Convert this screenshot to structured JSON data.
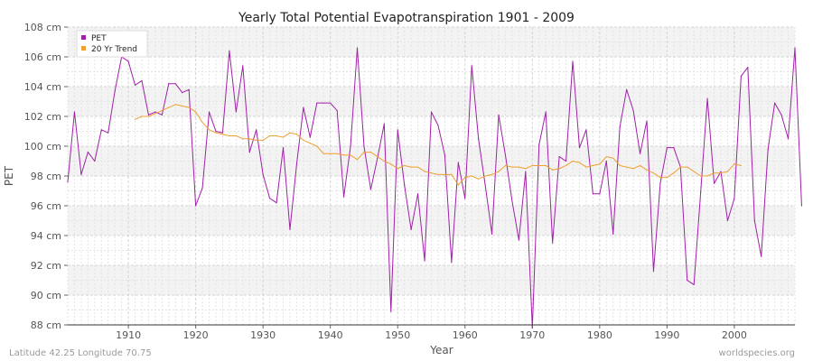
{
  "chart_data": {
    "type": "line",
    "title": "Yearly Total Potential Evapotranspiration 1901 - 2009",
    "xlabel": "Year",
    "ylabel": "PET",
    "xlim": [
      1901,
      2009
    ],
    "ylim": [
      88,
      108
    ],
    "y_unit": "cm",
    "x_ticks": [
      1910,
      1920,
      1930,
      1940,
      1950,
      1960,
      1970,
      1980,
      1990,
      2000
    ],
    "y_ticks": [
      88,
      90,
      92,
      94,
      96,
      98,
      100,
      102,
      104,
      106,
      108
    ],
    "y_tick_labels": [
      "88 cm",
      "90 cm",
      "92 cm",
      "94 cm",
      "96 cm",
      "98 cm",
      "100 cm",
      "102 cm",
      "104 cm",
      "106 cm",
      "108 cm"
    ],
    "grid": true,
    "legend_position": "top-left",
    "series": [
      {
        "name": "PET",
        "color": "#a020a8",
        "x_start": 1901,
        "values": [
          97.6,
          102.3,
          98.1,
          99.6,
          99.0,
          101.1,
          100.9,
          103.7,
          106.0,
          105.7,
          104.1,
          104.4,
          102.1,
          102.3,
          102.1,
          104.2,
          104.2,
          103.6,
          103.8,
          96.0,
          97.2,
          102.3,
          101.0,
          100.9,
          106.4,
          102.3,
          105.4,
          99.6,
          101.1,
          98.1,
          96.5,
          96.2,
          99.9,
          94.4,
          98.8,
          102.6,
          100.6,
          102.9,
          102.9,
          102.9,
          102.4,
          96.6,
          100.0,
          106.6,
          100.0,
          97.1,
          99.2,
          101.5,
          88.9,
          101.1,
          97.4,
          94.4,
          96.8,
          92.3,
          102.3,
          101.4,
          99.4,
          92.2,
          98.9,
          96.5,
          105.4,
          100.5,
          97.4,
          94.1,
          102.1,
          99.4,
          96.3,
          93.7,
          98.3,
          87.8,
          100.1,
          102.3,
          93.5,
          99.3,
          99.0,
          105.7,
          99.9,
          101.1,
          96.8,
          96.8,
          99.0,
          94.1,
          101.3,
          103.8,
          102.4,
          99.5,
          101.7,
          91.6,
          97.5,
          99.9,
          99.9,
          98.6,
          91.0,
          90.7,
          96.9,
          103.2,
          97.5,
          98.3,
          95.0,
          96.5,
          104.7,
          105.3,
          95.0,
          92.6,
          99.8,
          102.9,
          102.1,
          100.5,
          106.6,
          96.0
        ]
      },
      {
        "name": "20 Yr Trend",
        "color": "#f0a030",
        "x_start": 1911,
        "values": [
          101.8,
          102.0,
          102.0,
          102.2,
          102.4,
          102.6,
          102.8,
          102.7,
          102.6,
          102.3,
          101.6,
          101.1,
          100.9,
          100.8,
          100.7,
          100.7,
          100.5,
          100.5,
          100.4,
          100.4,
          100.7,
          100.7,
          100.6,
          100.9,
          100.8,
          100.4,
          100.2,
          100.0,
          99.5,
          99.5,
          99.5,
          99.4,
          99.4,
          99.1,
          99.6,
          99.6,
          99.3,
          99.0,
          98.8,
          98.5,
          98.7,
          98.6,
          98.6,
          98.3,
          98.2,
          98.1,
          98.1,
          98.1,
          97.4,
          97.9,
          98.0,
          97.8,
          98.0,
          98.1,
          98.3,
          98.7,
          98.6,
          98.6,
          98.5,
          98.7,
          98.7,
          98.7,
          98.4,
          98.5,
          98.7,
          99.0,
          98.9,
          98.6,
          98.7,
          98.8,
          99.3,
          99.2,
          98.7,
          98.6,
          98.5,
          98.7,
          98.4,
          98.2,
          97.9,
          97.9,
          98.2,
          98.6,
          98.6,
          98.3,
          98.0,
          98.0,
          98.2,
          98.2,
          98.3,
          98.8,
          98.7
        ]
      }
    ],
    "footer_left": "Latitude 42.25 Longitude 70.75",
    "footer_right": "worldspecies.org"
  }
}
